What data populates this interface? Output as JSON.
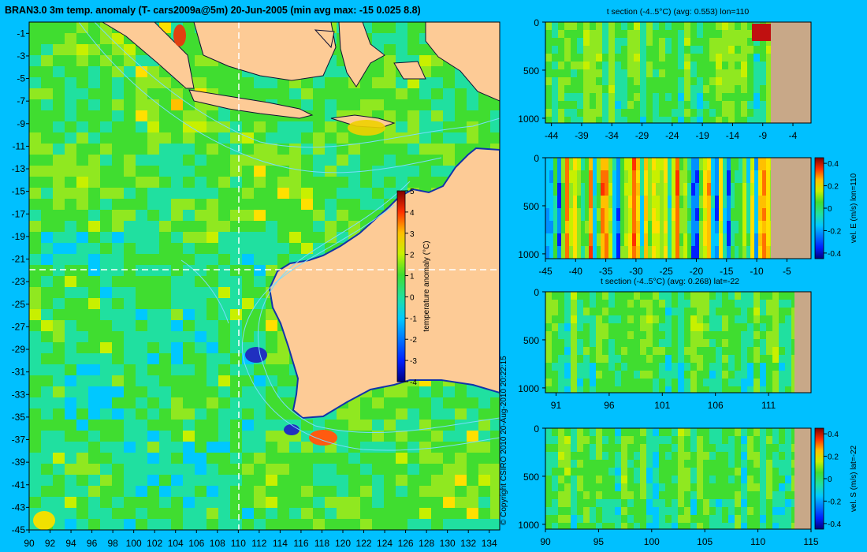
{
  "main_title": "BRAN3.0 3m temp. anomaly (T- cars2009a@5m) 20-Jun-2005 (min avg max: -15 0.025 8.8)",
  "copyright": "© Copyright CSIRO 2010   20-Aug-2010 20:22:15",
  "colors": {
    "background": "#00c0ff",
    "land": "#fdcb96",
    "section_land": "#c8a888",
    "ocean_base": "#33cc55",
    "coast": "#1133aa",
    "contour": "#77ddff"
  },
  "chart_data": [
    {
      "name": "map",
      "type": "heatmap",
      "title": "BRAN3.0 3m temp. anomaly (T- cars2009a@5m) 20-Jun-2005 (min avg max: -15 0.025 8.8)",
      "x_ticks": [
        "90",
        "92",
        "94",
        "96",
        "98",
        "100",
        "102",
        "104",
        "106",
        "108",
        "110",
        "112",
        "114",
        "116",
        "118",
        "120",
        "122",
        "124",
        "126",
        "128",
        "130",
        "132",
        "134"
      ],
      "y_ticks": [
        "-1",
        "-3",
        "-5",
        "-7",
        "-9",
        "-11",
        "-13",
        "-15",
        "-17",
        "-19",
        "-21",
        "-23",
        "-25",
        "-27",
        "-29",
        "-31",
        "-33",
        "-35",
        "-37",
        "-39",
        "-41",
        "-43",
        "-45"
      ],
      "xlim": [
        90,
        135
      ],
      "ylim": [
        -45,
        0
      ],
      "crosshair": {
        "lon": 110,
        "lat": -22
      },
      "colorbar": {
        "label": "temperature anomaly (°C)",
        "ticks": [
          "5",
          "4",
          "3",
          "2",
          "1",
          "0",
          "-1",
          "-2",
          "-3",
          "-4"
        ],
        "range": [
          -4,
          5
        ]
      }
    },
    {
      "name": "t_section_lon",
      "type": "heatmap",
      "title": "t section (-4..5°C) (avg: 0.553) lon=110",
      "x_ticks": [
        "-44",
        "-39",
        "-34",
        "-29",
        "-24",
        "-19",
        "-14",
        "-9",
        "-4"
      ],
      "y_ticks": [
        "0",
        "500",
        "1000"
      ],
      "xlim": [
        -45,
        -1
      ],
      "ylim": [
        1050,
        0
      ]
    },
    {
      "name": "vel_e_section",
      "type": "heatmap",
      "title": "",
      "x_ticks": [
        "-45",
        "-40",
        "-35",
        "-30",
        "-25",
        "-20",
        "-15",
        "-10",
        "-5"
      ],
      "y_ticks": [
        "0",
        "500",
        "1000"
      ],
      "xlim": [
        -45,
        -1
      ],
      "ylim": [
        1050,
        0
      ],
      "colorbar": {
        "label": "vel. E (m/s) lon=110",
        "ticks": [
          "0.4",
          "0.2",
          "0",
          "-0.2",
          "-0.4"
        ],
        "range": [
          -0.45,
          0.45
        ]
      }
    },
    {
      "name": "t_section_lat",
      "type": "heatmap",
      "title": "t section (-4..5°C) (avg: 0.268) lat=-22",
      "x_ticks": [
        "91",
        "96",
        "101",
        "106",
        "111"
      ],
      "y_ticks": [
        "0",
        "500",
        "1000"
      ],
      "xlim": [
        90,
        115
      ],
      "ylim": [
        1050,
        0
      ]
    },
    {
      "name": "vel_s_section",
      "type": "heatmap",
      "title": "",
      "x_ticks": [
        "90",
        "95",
        "100",
        "105",
        "110",
        "115"
      ],
      "y_ticks": [
        "0",
        "500",
        "1000"
      ],
      "xlim": [
        90,
        115
      ],
      "ylim": [
        1050,
        0
      ],
      "colorbar": {
        "label": "vel. S (m/s) lat=-22",
        "ticks": [
          "0.4",
          "0.2",
          "0",
          "-0.2",
          "-0.4"
        ],
        "range": [
          -0.45,
          0.45
        ]
      }
    }
  ]
}
